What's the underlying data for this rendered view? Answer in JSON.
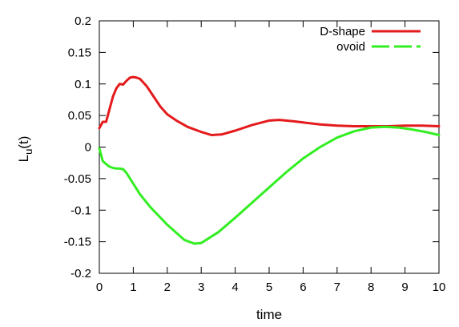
{
  "chart_data": {
    "type": "line",
    "xlabel": "time",
    "ylabel_main": "L",
    "ylabel_sub": "u",
    "ylabel_suffix": "(t)",
    "xlim": [
      0,
      10
    ],
    "ylim": [
      -0.2,
      0.2
    ],
    "xticks": [
      0,
      1,
      2,
      3,
      4,
      5,
      6,
      7,
      8,
      9,
      10
    ],
    "xtick_labels": [
      "0",
      "1",
      "2",
      "3",
      "4",
      "5",
      "6",
      "7",
      "8",
      "9",
      "10"
    ],
    "yticks": [
      -0.2,
      -0.15,
      -0.1,
      -0.05,
      0,
      0.05,
      0.1,
      0.15,
      0.2
    ],
    "ytick_labels": [
      "-0.2",
      "-0.15",
      "-0.1",
      "-0.05",
      "0",
      "0.05",
      "0.1",
      "0.15",
      "0.2"
    ],
    "grid": false,
    "legend_position": "top-right",
    "series": [
      {
        "name": "D-shape",
        "color": "#e41a1c",
        "dash": "solid",
        "x": [
          0,
          0.1,
          0.2,
          0.3,
          0.4,
          0.5,
          0.6,
          0.7,
          0.8,
          0.9,
          1.0,
          1.1,
          1.2,
          1.4,
          1.6,
          1.8,
          2.0,
          2.3,
          2.6,
          3.0,
          3.3,
          3.6,
          4.0,
          4.5,
          5.0,
          5.3,
          5.7,
          6.0,
          6.5,
          7.0,
          7.5,
          8.0,
          8.5,
          9.0,
          9.5,
          10.0
        ],
        "y": [
          0.03,
          0.04,
          0.04,
          0.06,
          0.08,
          0.093,
          0.1,
          0.099,
          0.105,
          0.11,
          0.111,
          0.11,
          0.108,
          0.096,
          0.08,
          0.064,
          0.052,
          0.041,
          0.032,
          0.024,
          0.019,
          0.02,
          0.026,
          0.035,
          0.042,
          0.043,
          0.041,
          0.039,
          0.036,
          0.034,
          0.033,
          0.033,
          0.033,
          0.034,
          0.034,
          0.033
        ]
      },
      {
        "name": "ovoid",
        "color": "#33ee22",
        "dash": "dashed",
        "x": [
          0,
          0.1,
          0.2,
          0.3,
          0.4,
          0.5,
          0.6,
          0.7,
          0.8,
          1.0,
          1.2,
          1.5,
          2.0,
          2.5,
          2.8,
          3.0,
          3.5,
          4.0,
          4.5,
          5.0,
          5.5,
          6.0,
          6.5,
          7.0,
          7.5,
          8.0,
          8.4,
          8.8,
          9.2,
          9.6,
          10.0
        ],
        "y": [
          -0.002,
          -0.022,
          -0.027,
          -0.031,
          -0.033,
          -0.034,
          -0.034,
          -0.035,
          -0.041,
          -0.058,
          -0.075,
          -0.095,
          -0.123,
          -0.147,
          -0.153,
          -0.152,
          -0.135,
          -0.112,
          -0.088,
          -0.064,
          -0.04,
          -0.018,
          0.0,
          0.015,
          0.025,
          0.031,
          0.032,
          0.031,
          0.028,
          0.024,
          0.019
        ]
      }
    ]
  }
}
